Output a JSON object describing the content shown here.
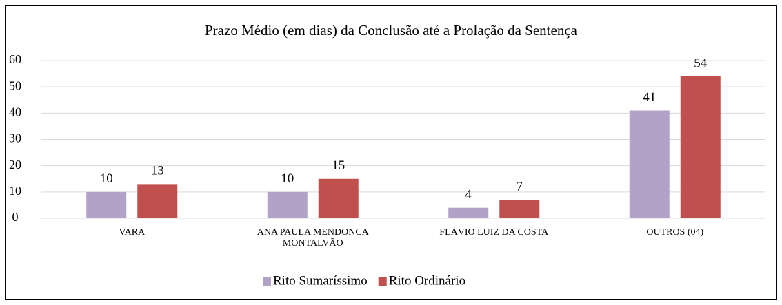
{
  "chart_data": {
    "type": "bar",
    "title": "Prazo Médio (em dias) da Conclusão até a Prolação da Sentença",
    "categories": [
      "VARA",
      "ANA PAULA MENDONCA MONTALVÃO",
      "FLÁVIO LUIZ DA COSTA",
      "OUTROS (04)"
    ],
    "series": [
      {
        "name": "Rito Sumaríssimo",
        "color": "#b3a2c7",
        "values": [
          10,
          10,
          4,
          41
        ]
      },
      {
        "name": "Rito Ordinário",
        "color": "#c0504d",
        "values": [
          13,
          15,
          7,
          54
        ]
      }
    ],
    "ylim": [
      0,
      60
    ],
    "yticks": [
      0,
      10,
      20,
      30,
      40,
      50,
      60
    ],
    "grid": true,
    "legend": "bottom"
  }
}
